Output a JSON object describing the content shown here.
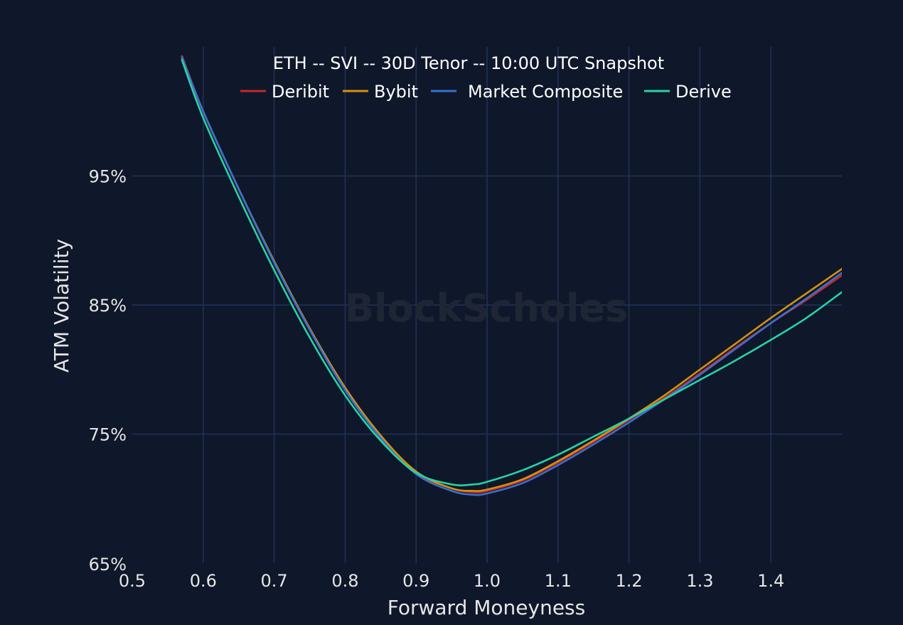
{
  "watermark": "BlockScholes",
  "chart_data": {
    "type": "line",
    "title": "ETH -- SVI -- 30D Tenor -- 10:00 UTC Snapshot",
    "xlabel": "Forward Moneyness",
    "ylabel": "ATM Volatility",
    "xlim": [
      0.5,
      1.5
    ],
    "ylim": [
      65,
      105
    ],
    "x_ticks": [
      0.5,
      0.6,
      0.7,
      0.8,
      0.9,
      1.0,
      1.1,
      1.2,
      1.3,
      1.4
    ],
    "x_tick_labels": [
      "0.5",
      "0.6",
      "0.7",
      "0.8",
      "0.9",
      "1.0",
      "1.1",
      "1.2",
      "1.3",
      "1.4"
    ],
    "y_ticks": [
      65,
      75,
      85,
      95
    ],
    "y_tick_labels": [
      "65%",
      "75%",
      "85%",
      "95%"
    ],
    "grid": true,
    "legend_position": "top",
    "x": [
      0.57,
      0.6,
      0.65,
      0.7,
      0.75,
      0.8,
      0.85,
      0.9,
      0.95,
      0.98,
      1.0,
      1.05,
      1.1,
      1.15,
      1.2,
      1.25,
      1.3,
      1.35,
      1.4,
      1.45,
      1.5
    ],
    "series": [
      {
        "name": "Deribit",
        "color": "#c62828",
        "values": [
          104.3,
          100.0,
          94.0,
          88.3,
          83.1,
          78.5,
          74.8,
          72.0,
          70.8,
          70.5,
          70.6,
          71.4,
          72.8,
          74.4,
          76.1,
          77.8,
          79.7,
          81.7,
          83.6,
          85.4,
          87.3
        ]
      },
      {
        "name": "Bybit",
        "color": "#d4910e",
        "values": [
          104.2,
          100.0,
          94.0,
          88.4,
          83.2,
          78.6,
          74.9,
          72.1,
          70.8,
          70.6,
          70.7,
          71.5,
          72.9,
          74.5,
          76.2,
          78.0,
          80.0,
          82.0,
          84.0,
          85.9,
          87.8
        ]
      },
      {
        "name": "Market Composite",
        "color": "#3b6fd1",
        "values": [
          104.2,
          100.0,
          94.0,
          88.3,
          83.1,
          78.4,
          74.7,
          71.9,
          70.6,
          70.3,
          70.4,
          71.2,
          72.6,
          74.2,
          75.9,
          77.7,
          79.6,
          81.6,
          83.6,
          85.5,
          87.5
        ]
      },
      {
        "name": "Derive",
        "color": "#27d3a3",
        "values": [
          104.0,
          99.5,
          93.4,
          87.7,
          82.5,
          78.0,
          74.5,
          72.0,
          71.1,
          71.1,
          71.3,
          72.2,
          73.4,
          74.8,
          76.2,
          77.7,
          79.2,
          80.7,
          82.3,
          84.0,
          86.0
        ]
      }
    ]
  }
}
